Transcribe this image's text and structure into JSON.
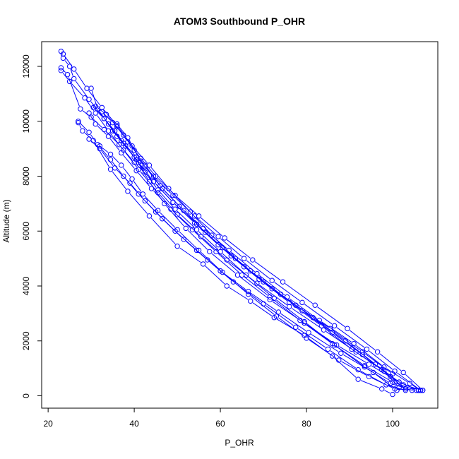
{
  "chart_data": {
    "type": "line",
    "title": "ATOM3 Southbound P_OHR",
    "xlabel": "P_OHR",
    "ylabel": "Altitude (m)",
    "xlim": [
      18.5,
      110.5
    ],
    "ylim": [
      -450,
      12900
    ],
    "xticks": [
      20,
      40,
      60,
      80,
      100
    ],
    "yticks": [
      0,
      2000,
      4000,
      6000,
      8000,
      10000,
      12000
    ],
    "line_color": "#0000ff",
    "marker": "open-circle",
    "series": [
      {
        "x": [
          23.0,
          23.5,
          25.0,
          26.0,
          29.5,
          33.0,
          36.0,
          40.5,
          43.5,
          47.0,
          52.0,
          57.5,
          64.0,
          71.5,
          79.5,
          87.0,
          94.5,
          101.5,
          106.0
        ],
        "y": [
          12550,
          12300,
          12000,
          11550,
          10800,
          10100,
          9450,
          8600,
          7800,
          7000,
          6100,
          5250,
          4400,
          3500,
          2650,
          1850,
          1150,
          500,
          200
        ]
      },
      {
        "x": [
          23.0,
          25.0,
          28.5,
          31.0,
          34.0,
          37.5,
          41.0,
          45.5,
          50.0,
          55.5,
          61.5,
          68.5,
          76.0,
          84.0,
          91.5,
          98.0,
          101.5
        ],
        "y": [
          11850,
          11450,
          10850,
          10300,
          9650,
          8950,
          8250,
          7400,
          6600,
          5800,
          4950,
          4100,
          3250,
          2400,
          1600,
          900,
          300
        ]
      },
      {
        "x": [
          23.5,
          26.0,
          29.0,
          32.5,
          36.0,
          39.5,
          43.5,
          48.0,
          53.0,
          58.0,
          63.5,
          70.0,
          77.5,
          85.5,
          93.0,
          100.0
        ],
        "y": [
          12450,
          11900,
          11200,
          10500,
          9850,
          9100,
          8400,
          7550,
          6700,
          5850,
          5000,
          4150,
          3300,
          2450,
          1600,
          800
        ]
      },
      {
        "x": [
          27.0,
          29.5,
          31.5,
          34.5,
          37.5,
          41.0,
          45.0,
          49.5,
          54.5,
          60.0,
          66.5,
          73.5,
          80.5,
          88.0,
          95.5,
          101.0
        ],
        "y": [
          10000,
          9600,
          9150,
          8600,
          8000,
          7350,
          6700,
          6000,
          5300,
          4550,
          3800,
          3050,
          2300,
          1550,
          850,
          200
        ]
      },
      {
        "x": [
          23.0,
          24.5,
          27.5,
          30.0,
          33.0,
          36.5,
          40.0,
          44.5,
          49.0,
          54.0,
          59.5,
          65.5,
          72.0,
          79.0,
          86.0,
          93.0,
          99.5,
          103.0
        ],
        "y": [
          11950,
          11700,
          10450,
          10150,
          9700,
          9150,
          8500,
          7800,
          7050,
          6300,
          5500,
          4700,
          3900,
          3100,
          2300,
          1500,
          700,
          250
        ]
      },
      {
        "x": [
          27.0,
          28.0,
          30.5,
          34.5,
          38.5,
          43.5,
          50.0,
          56.0,
          61.5,
          67.0,
          72.5,
          79.5,
          86.0,
          92.0,
          97.5,
          100.0
        ],
        "y": [
          9950,
          9650,
          9300,
          8250,
          7450,
          6550,
          5450,
          4800,
          4000,
          3450,
          2850,
          2200,
          1450,
          600,
          250,
          50
        ]
      },
      {
        "x": [
          30.0,
          31.5,
          34.0,
          37.0,
          40.5,
          44.5,
          49.0,
          54.0,
          59.5,
          65.5,
          72.0,
          79.0,
          86.5,
          94.0,
          100.5,
          106.5
        ],
        "y": [
          11200,
          10450,
          9900,
          9300,
          8700,
          8000,
          7300,
          6550,
          5800,
          5000,
          4200,
          3400,
          2550,
          1700,
          900,
          200
        ]
      },
      {
        "x": [
          31.0,
          33.5,
          36.0,
          38.5,
          41.5,
          45.0,
          49.5,
          55.0,
          61.0,
          67.5,
          74.5,
          82.0,
          89.5,
          96.5,
          102.5,
          107.0
        ],
        "y": [
          10550,
          10250,
          9800,
          9250,
          8650,
          8000,
          7300,
          6550,
          5750,
          4950,
          4150,
          3300,
          2450,
          1600,
          850,
          200
        ]
      },
      {
        "x": [
          32.5,
          35.0,
          37.5,
          40.0,
          42.5,
          46.0,
          50.5,
          56.0,
          62.0,
          68.5,
          75.5,
          83.0,
          91.0,
          98.0,
          104.0,
          106.5
        ],
        "y": [
          10350,
          9950,
          9500,
          8950,
          8350,
          7650,
          6900,
          6100,
          5300,
          4450,
          3600,
          2750,
          1900,
          1050,
          450,
          200
        ]
      },
      {
        "x": [
          29.5,
          31.0,
          34.0,
          37.0,
          40.5,
          44.0,
          48.5,
          53.5,
          59.0,
          65.0,
          71.5,
          78.5,
          86.0,
          93.5,
          100.0,
          105.5
        ],
        "y": [
          10300,
          9900,
          9450,
          8850,
          8200,
          7550,
          6800,
          6050,
          5250,
          4400,
          3600,
          2750,
          1900,
          1100,
          500,
          200
        ]
      },
      {
        "x": [
          30.5,
          33.0,
          35.5,
          38.0,
          41.0,
          44.5,
          49.0,
          54.5,
          60.5,
          67.0,
          74.0,
          81.5,
          89.0,
          96.0,
          101.5,
          106.0
        ],
        "y": [
          10500,
          10100,
          9650,
          9100,
          8500,
          7800,
          7050,
          6250,
          5400,
          4550,
          3700,
          2850,
          2000,
          1150,
          500,
          200
        ]
      },
      {
        "x": [
          35.0,
          37.5,
          40.0,
          42.5,
          45.5,
          49.5,
          54.5,
          60.0,
          66.0,
          72.5,
          79.5,
          86.5,
          93.5,
          99.5,
          104.5
        ],
        "y": [
          9650,
          9200,
          8700,
          8150,
          7500,
          6800,
          6050,
          5250,
          4400,
          3550,
          2700,
          1850,
          1050,
          450,
          200
        ]
      },
      {
        "x": [
          36.0,
          38.5,
          41.5,
          42.5,
          46.5,
          51.5,
          56.5,
          62.5,
          69.0,
          76.0,
          83.5,
          90.5,
          97.5,
          102.5,
          107.0
        ],
        "y": [
          9900,
          9400,
          8550,
          8400,
          7550,
          6750,
          5950,
          5100,
          4250,
          3400,
          2550,
          1700,
          950,
          400,
          200
        ]
      },
      {
        "x": [
          32.0,
          34.5,
          37.0,
          39.5,
          42.0,
          45.5,
          50.0,
          55.0,
          60.5,
          66.5,
          73.0,
          80.0,
          87.5,
          94.5,
          100.5,
          106.0
        ],
        "y": [
          9100,
          8800,
          8400,
          7900,
          7350,
          6750,
          6050,
          5300,
          4500,
          3700,
          2900,
          2100,
          1300,
          700,
          250,
          200
        ]
      },
      {
        "x": [
          29.5,
          32.0,
          35.5,
          39.0,
          42.5,
          46.5,
          51.5,
          57.0,
          63.0,
          70.0,
          77.5,
          85.0,
          92.0,
          98.5,
          103.0
        ],
        "y": [
          9350,
          9000,
          8300,
          7750,
          7100,
          6450,
          5700,
          4950,
          4150,
          3350,
          2500,
          1700,
          950,
          400,
          200
        ]
      }
    ]
  }
}
